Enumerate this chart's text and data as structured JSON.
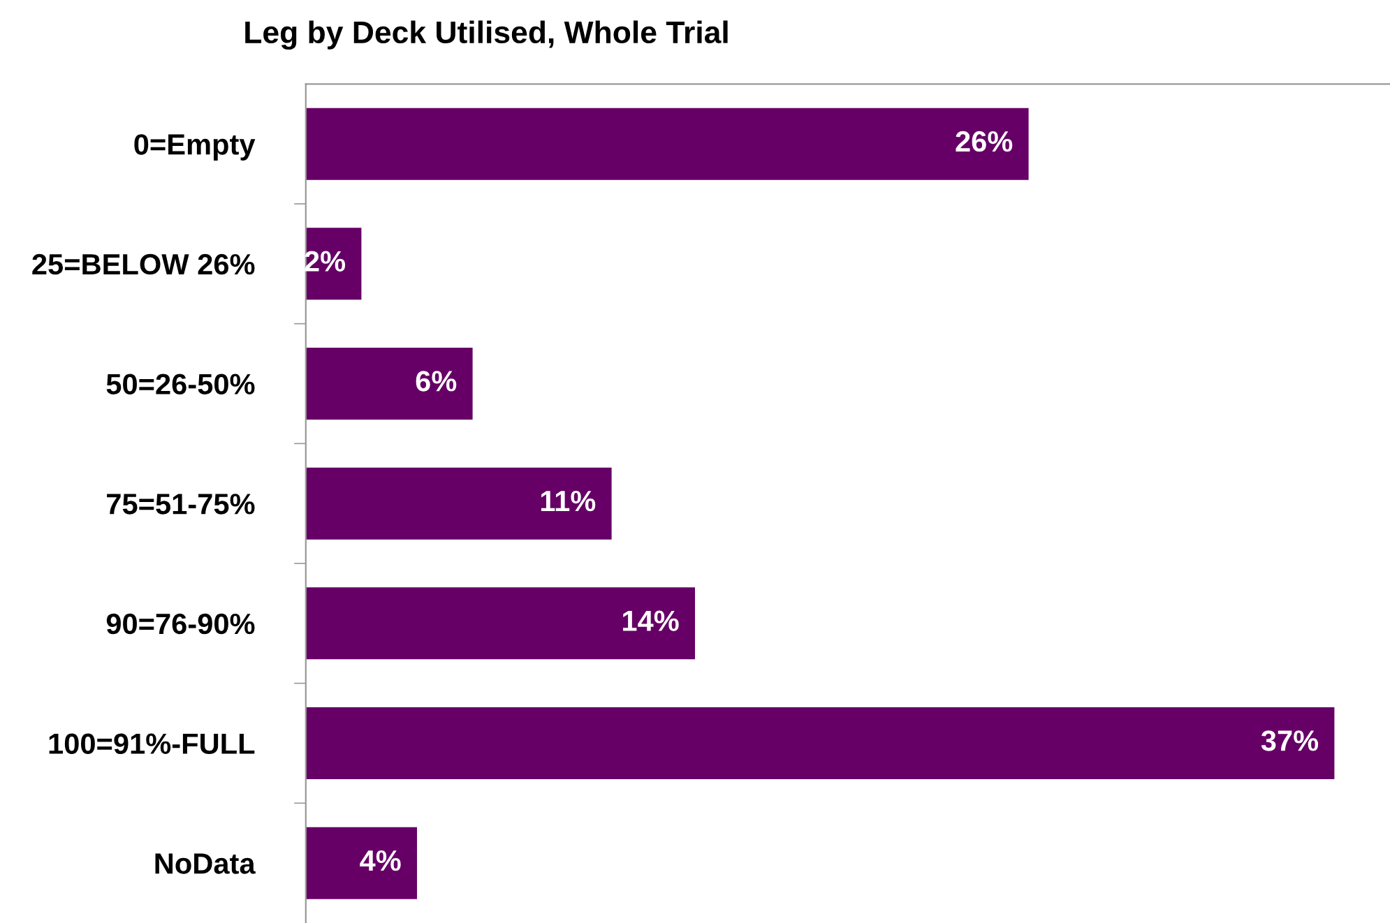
{
  "chart_data": {
    "type": "bar",
    "orientation": "horizontal",
    "title": "Leg by Deck Utilised, Whole Trial",
    "categories": [
      "0=Empty",
      "25=BELOW 26%",
      "50=26-50%",
      "75=51-75%",
      "90=76-90%",
      "100=91%-FULL",
      "NoData"
    ],
    "values": [
      26,
      2,
      6,
      11,
      14,
      37,
      4
    ],
    "value_labels": [
      "26%",
      "2%",
      "6%",
      "11%",
      "14%",
      "37%",
      "4%"
    ],
    "color": "#660066",
    "xlim": [
      0,
      39
    ],
    "tick_labels": "y",
    "grid": false,
    "legend": false
  }
}
